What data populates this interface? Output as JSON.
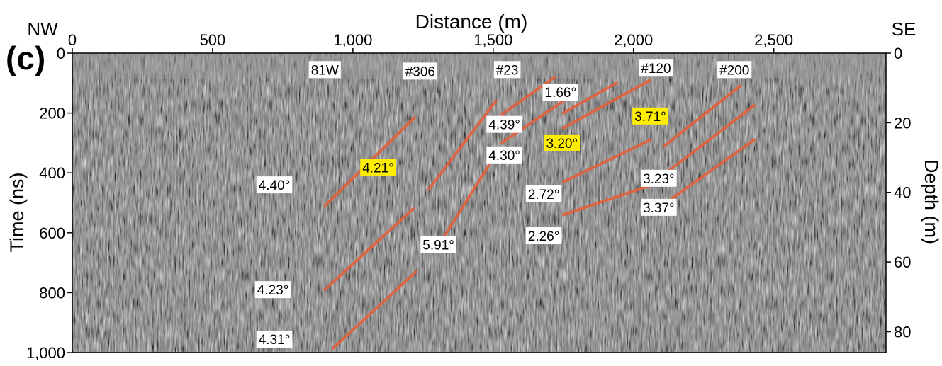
{
  "chart_data": {
    "type": "scatter",
    "panel_label": "(c)",
    "xlabel": "Distance (m)",
    "ylabel": "Time (ns)",
    "ylabel_right": "Depth (m)",
    "corner_left": "NW",
    "corner_right": "SE",
    "xlim": [
      0,
      2900
    ],
    "ylim": [
      1000,
      0
    ],
    "ylim_right": [
      86,
      0
    ],
    "x_ticks": [
      0,
      500,
      1000,
      1500,
      2000,
      2500
    ],
    "x_tick_labels": [
      "0",
      "500",
      "1,000",
      "1,500",
      "2,000",
      "2,500"
    ],
    "y_ticks": [
      0,
      200,
      400,
      600,
      800,
      1000
    ],
    "y_tick_labels": [
      "0",
      "200",
      "400",
      "600",
      "800",
      "1,000"
    ],
    "y_right_ticks": [
      0,
      20,
      40,
      60,
      80
    ],
    "y_right_tick_labels": [
      "0",
      "20",
      "40",
      "60",
      "80"
    ],
    "colors": {
      "reflector": "#e0623f",
      "highlight": "#ffee00",
      "label_bg": "#ffffff",
      "divider": "#d8d8d8"
    },
    "markers": [
      {
        "label": "81W",
        "x": 900,
        "y": 55
      },
      {
        "label": "#306",
        "x": 1240,
        "y": 60
      },
      {
        "label": "#23",
        "x": 1550,
        "y": 55
      },
      {
        "label": "#120",
        "x": 2080,
        "y": 50
      },
      {
        "label": "#200",
        "x": 2360,
        "y": 55
      }
    ],
    "divider_x": 1525,
    "reflectors": [
      {
        "dip": "4.40°",
        "highlight": false,
        "x1": 900,
        "y1": 510,
        "x2": 1220,
        "y2": 215,
        "lx": 720,
        "ly": 440
      },
      {
        "dip": "4.23°",
        "highlight": false,
        "x1": 900,
        "y1": 790,
        "x2": 1215,
        "y2": 520,
        "lx": 715,
        "ly": 790
      },
      {
        "dip": "4.31°",
        "highlight": false,
        "x1": 930,
        "y1": 985,
        "x2": 1225,
        "y2": 730,
        "lx": 720,
        "ly": 955
      },
      {
        "dip": "4.21°",
        "highlight": true,
        "x1": 1270,
        "y1": 455,
        "x2": 1510,
        "y2": 160,
        "lx": 1090,
        "ly": 382
      },
      {
        "dip": "5.91°",
        "highlight": false,
        "x1": 1290,
        "y1": 665,
        "x2": 1515,
        "y2": 330,
        "lx": 1305,
        "ly": 640
      },
      {
        "dip": "4.39°",
        "highlight": false,
        "x1": 1530,
        "y1": 205,
        "x2": 1720,
        "y2": 80,
        "lx": 1540,
        "ly": 238
      },
      {
        "dip": "4.30°",
        "highlight": false,
        "x1": 1530,
        "y1": 300,
        "x2": 1750,
        "y2": 160,
        "lx": 1540,
        "ly": 340
      },
      {
        "dip": "1.66°",
        "highlight": false,
        "x1": 1750,
        "y1": 200,
        "x2": 1940,
        "y2": 100,
        "lx": 1740,
        "ly": 130
      },
      {
        "dip": "3.20°",
        "highlight": true,
        "x1": 1750,
        "y1": 250,
        "x2": 2060,
        "y2": 90,
        "lx": 1745,
        "ly": 300
      },
      {
        "dip": "2.72°",
        "highlight": false,
        "x1": 1750,
        "y1": 430,
        "x2": 2060,
        "y2": 290,
        "lx": 1680,
        "ly": 470
      },
      {
        "dip": "2.26°",
        "highlight": false,
        "x1": 1750,
        "y1": 540,
        "x2": 2130,
        "y2": 420,
        "lx": 1680,
        "ly": 610
      },
      {
        "dip": "3.71°",
        "highlight": true,
        "x1": 2110,
        "y1": 310,
        "x2": 2380,
        "y2": 110,
        "lx": 2060,
        "ly": 210
      },
      {
        "dip": "3.23°",
        "highlight": false,
        "x1": 2130,
        "y1": 390,
        "x2": 2430,
        "y2": 175,
        "lx": 2090,
        "ly": 418
      },
      {
        "dip": "3.37°",
        "highlight": false,
        "x1": 2130,
        "y1": 490,
        "x2": 2430,
        "y2": 290,
        "lx": 2090,
        "ly": 515
      }
    ]
  }
}
